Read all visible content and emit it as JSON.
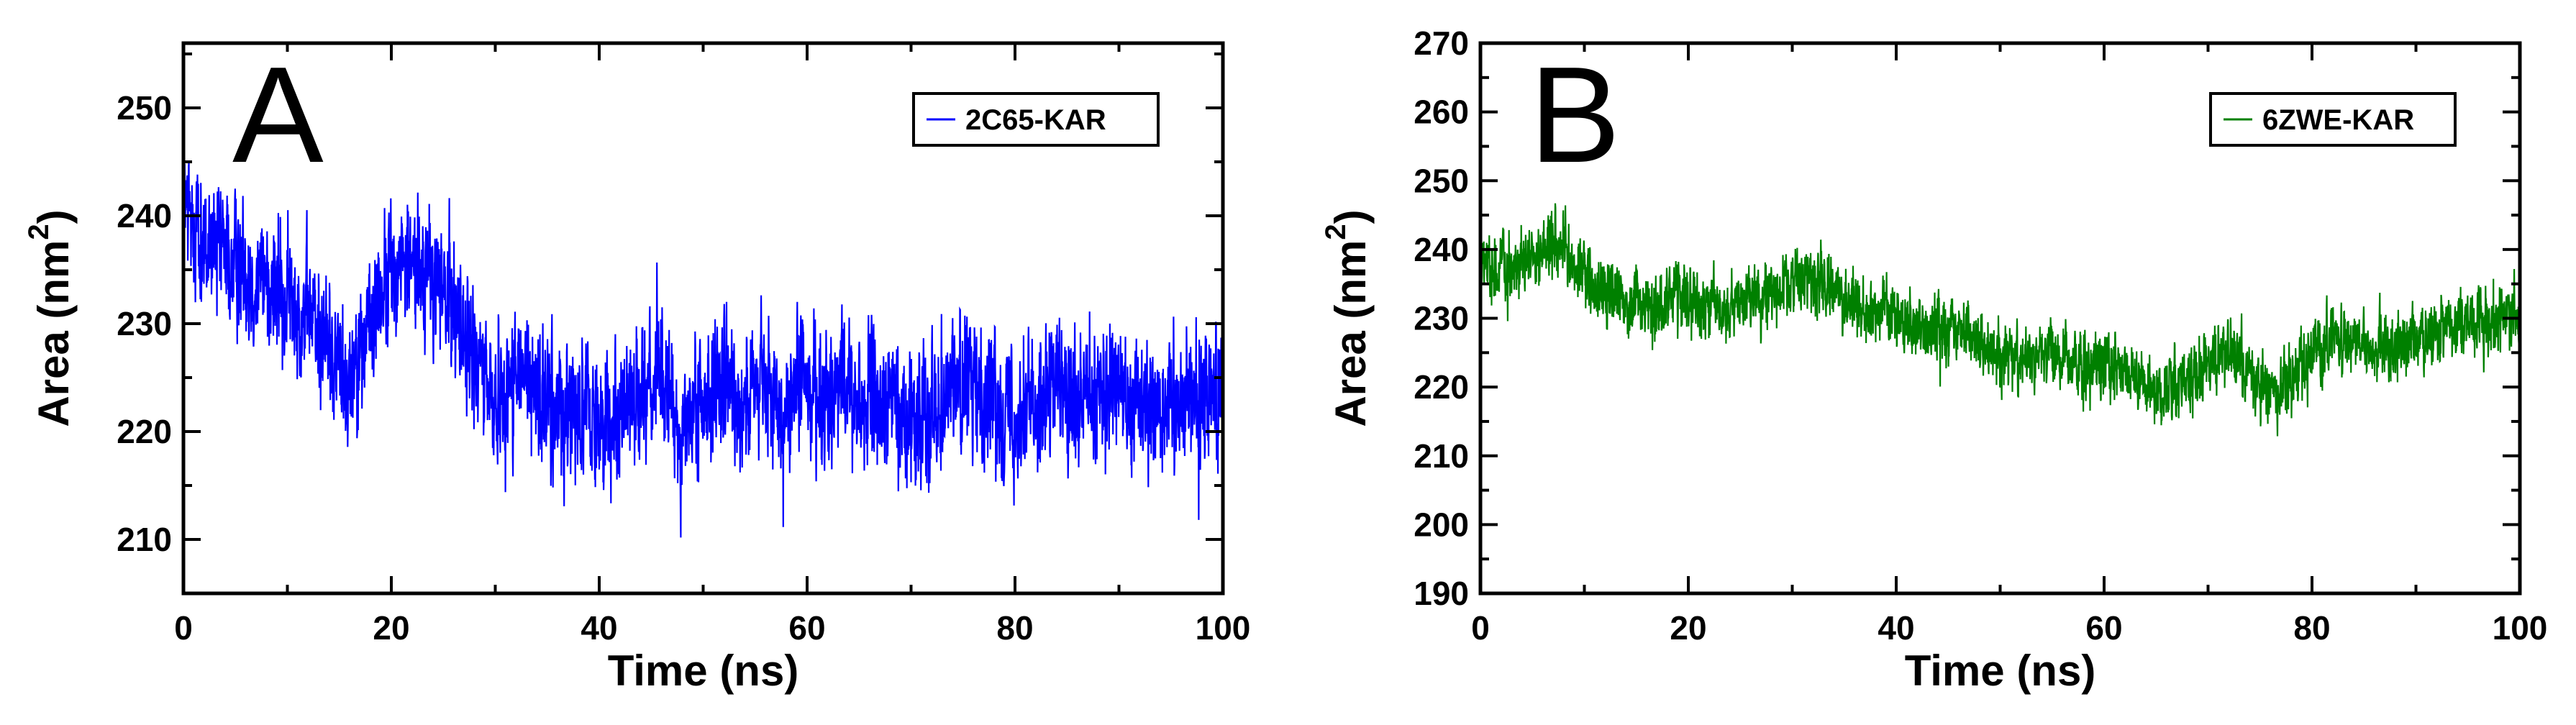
{
  "chart_data": [
    {
      "type": "line",
      "panel_label": "A",
      "xlabel": "Time (ns)",
      "ylabel": "Area (nm",
      "ylabel_superscript": "2",
      "ylabel_suffix": ")",
      "xlim": [
        0,
        100
      ],
      "ylim": [
        205,
        256
      ],
      "xticks": [
        0,
        20,
        40,
        60,
        80,
        100
      ],
      "yticks": [
        210,
        220,
        230,
        240,
        250
      ],
      "grid": false,
      "legend_position": "top-right",
      "series": [
        {
          "name": "2C65-KAR",
          "color": "#0000ff",
          "noise_amplitude": 4.5,
          "x": [
            0,
            2,
            4,
            6,
            8,
            10,
            12,
            14,
            16,
            18,
            20,
            22,
            24,
            26,
            28,
            30,
            32,
            34,
            36,
            38,
            40,
            42,
            44,
            46,
            48,
            50,
            52,
            54,
            56,
            58,
            60,
            62,
            64,
            66,
            68,
            70,
            72,
            74,
            76,
            78,
            80,
            82,
            84,
            86,
            88,
            90,
            92,
            94,
            96,
            98,
            100
          ],
          "y": [
            241,
            237,
            236,
            235,
            234,
            232,
            231,
            228,
            225,
            230,
            235,
            236,
            234,
            232,
            226,
            223,
            225,
            224,
            222,
            223,
            221,
            222,
            224,
            225,
            220,
            223,
            224,
            223,
            224,
            222,
            225,
            223,
            224,
            222,
            223,
            221,
            222,
            225,
            224,
            223,
            222,
            223,
            224,
            222,
            223,
            224,
            223,
            222,
            223,
            224,
            224
          ]
        }
      ]
    },
    {
      "type": "line",
      "panel_label": "B",
      "xlabel": "Time (ns)",
      "ylabel": "Area (nm",
      "ylabel_superscript": "2",
      "ylabel_suffix": ")",
      "xlim": [
        0,
        100
      ],
      "ylim": [
        190,
        270
      ],
      "xticks": [
        0,
        20,
        40,
        60,
        80,
        100
      ],
      "yticks": [
        190,
        200,
        210,
        220,
        230,
        240,
        250,
        260,
        270
      ],
      "grid": false,
      "legend_position": "top-right",
      "series": [
        {
          "name": "6ZWE-KAR",
          "color": "#008000",
          "noise_amplitude": 3.5,
          "x": [
            0,
            2,
            4,
            6,
            8,
            10,
            12,
            14,
            16,
            18,
            20,
            22,
            24,
            26,
            28,
            30,
            32,
            34,
            36,
            38,
            40,
            42,
            44,
            46,
            48,
            50,
            52,
            54,
            56,
            58,
            60,
            62,
            64,
            66,
            68,
            70,
            72,
            74,
            76,
            78,
            80,
            82,
            84,
            86,
            88,
            90,
            92,
            94,
            96,
            98,
            100
          ],
          "y": [
            238,
            237,
            238,
            239,
            240,
            236,
            234,
            232,
            231,
            232,
            233,
            232,
            231,
            233,
            234,
            235,
            236,
            234,
            232,
            231,
            230,
            229,
            228,
            229,
            226,
            225,
            224,
            225,
            224,
            223,
            224,
            222,
            221,
            220,
            221,
            223,
            226,
            222,
            220,
            221,
            224,
            228,
            227,
            226,
            225,
            227,
            228,
            229,
            229,
            230,
            230
          ]
        }
      ]
    }
  ]
}
